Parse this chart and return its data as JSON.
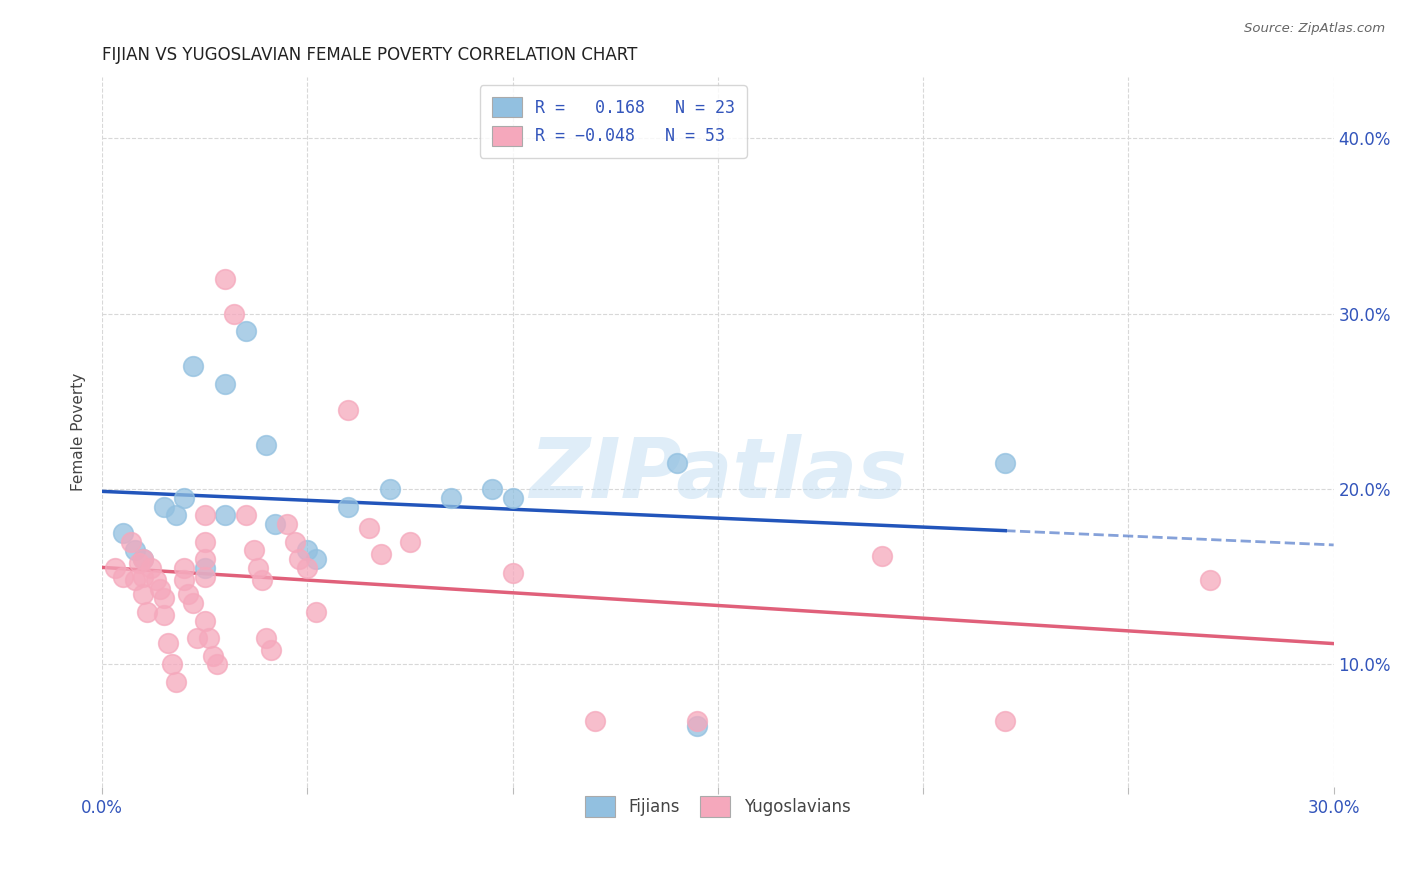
{
  "title": "FIJIAN VS YUGOSLAVIAN FEMALE POVERTY CORRELATION CHART",
  "source": "Source: ZipAtlas.com",
  "ylabel": "Female Poverty",
  "xlim": [
    0.0,
    0.3
  ],
  "ylim": [
    0.03,
    0.435
  ],
  "fijian_R": 0.168,
  "fijian_N": 23,
  "yugoslav_R": -0.048,
  "yugoslav_N": 53,
  "fijian_color": "#92c0e0",
  "yugoslav_color": "#f5a8bc",
  "fijian_line_color": "#2255bb",
  "yugoslav_line_color": "#e0607a",
  "fijian_scatter": [
    [
      0.005,
      0.175
    ],
    [
      0.008,
      0.165
    ],
    [
      0.01,
      0.16
    ],
    [
      0.015,
      0.19
    ],
    [
      0.018,
      0.185
    ],
    [
      0.02,
      0.195
    ],
    [
      0.022,
      0.27
    ],
    [
      0.025,
      0.155
    ],
    [
      0.03,
      0.26
    ],
    [
      0.03,
      0.185
    ],
    [
      0.035,
      0.29
    ],
    [
      0.04,
      0.225
    ],
    [
      0.042,
      0.18
    ],
    [
      0.05,
      0.165
    ],
    [
      0.052,
      0.16
    ],
    [
      0.06,
      0.19
    ],
    [
      0.07,
      0.2
    ],
    [
      0.085,
      0.195
    ],
    [
      0.095,
      0.2
    ],
    [
      0.1,
      0.195
    ],
    [
      0.14,
      0.215
    ],
    [
      0.145,
      0.065
    ],
    [
      0.22,
      0.215
    ]
  ],
  "yugoslav_scatter": [
    [
      0.003,
      0.155
    ],
    [
      0.005,
      0.15
    ],
    [
      0.007,
      0.17
    ],
    [
      0.008,
      0.148
    ],
    [
      0.009,
      0.158
    ],
    [
      0.01,
      0.16
    ],
    [
      0.01,
      0.15
    ],
    [
      0.01,
      0.14
    ],
    [
      0.011,
      0.13
    ],
    [
      0.012,
      0.155
    ],
    [
      0.013,
      0.148
    ],
    [
      0.014,
      0.143
    ],
    [
      0.015,
      0.138
    ],
    [
      0.015,
      0.128
    ],
    [
      0.016,
      0.112
    ],
    [
      0.017,
      0.1
    ],
    [
      0.018,
      0.09
    ],
    [
      0.02,
      0.155
    ],
    [
      0.02,
      0.148
    ],
    [
      0.021,
      0.14
    ],
    [
      0.022,
      0.135
    ],
    [
      0.023,
      0.115
    ],
    [
      0.025,
      0.185
    ],
    [
      0.025,
      0.17
    ],
    [
      0.025,
      0.16
    ],
    [
      0.025,
      0.15
    ],
    [
      0.025,
      0.125
    ],
    [
      0.026,
      0.115
    ],
    [
      0.027,
      0.105
    ],
    [
      0.028,
      0.1
    ],
    [
      0.03,
      0.32
    ],
    [
      0.032,
      0.3
    ],
    [
      0.035,
      0.185
    ],
    [
      0.037,
      0.165
    ],
    [
      0.038,
      0.155
    ],
    [
      0.039,
      0.148
    ],
    [
      0.04,
      0.115
    ],
    [
      0.041,
      0.108
    ],
    [
      0.045,
      0.18
    ],
    [
      0.047,
      0.17
    ],
    [
      0.048,
      0.16
    ],
    [
      0.05,
      0.155
    ],
    [
      0.052,
      0.13
    ],
    [
      0.06,
      0.245
    ],
    [
      0.065,
      0.178
    ],
    [
      0.068,
      0.163
    ],
    [
      0.075,
      0.17
    ],
    [
      0.1,
      0.152
    ],
    [
      0.12,
      0.068
    ],
    [
      0.145,
      0.068
    ],
    [
      0.19,
      0.162
    ],
    [
      0.22,
      0.068
    ],
    [
      0.27,
      0.148
    ]
  ],
  "grid_color": "#d8d8d8",
  "background_color": "#ffffff",
  "watermark": "ZIPatlas"
}
